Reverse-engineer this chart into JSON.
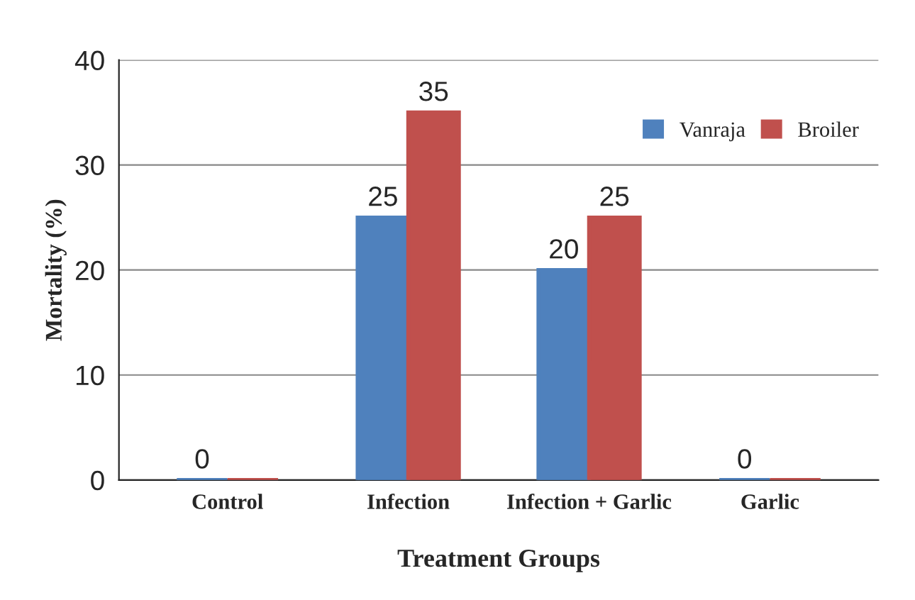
{
  "chart_data": {
    "type": "bar",
    "xlabel": "Treatment Groups",
    "ylabel": "Mortality (%)",
    "categories": [
      "Control",
      "Infection",
      "Infection + Garlic",
      "Garlic"
    ],
    "series": [
      {
        "name": "Vanraja",
        "color": "#4f81bd",
        "values": [
          0,
          25,
          20,
          0
        ],
        "value_labels": [
          "0",
          "25",
          "20",
          "0"
        ]
      },
      {
        "name": "Broiler",
        "color": "#c0504d",
        "values": [
          0,
          35,
          25,
          0
        ],
        "value_labels": [
          null,
          "35",
          "25",
          null
        ]
      }
    ],
    "ylim": [
      0,
      40
    ],
    "yticks": [
      0,
      10,
      20,
      30,
      40
    ],
    "grid": "y",
    "legend": "top right"
  }
}
